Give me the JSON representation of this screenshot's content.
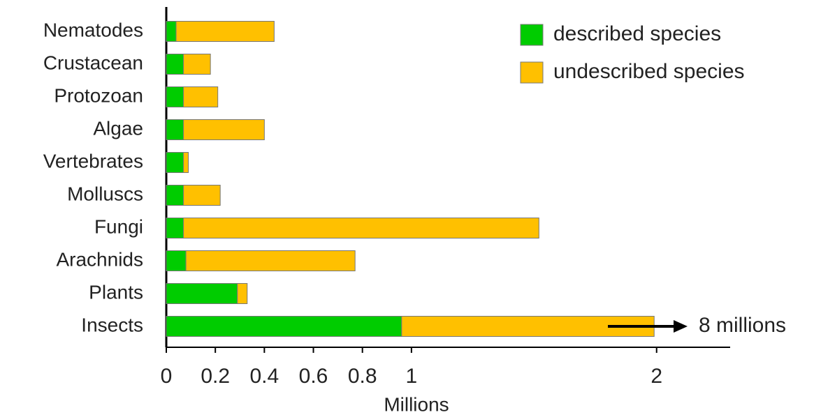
{
  "chart_data": {
    "type": "stacked-barh",
    "categories": [
      "Nematodes",
      "Crustacean",
      "Protozoan",
      "Algae",
      "Vertebrates",
      "Molluscs",
      "Fungi",
      "Arachnids",
      "Plants",
      "Insects"
    ],
    "series": [
      {
        "name": "described species",
        "color": "#00cc00",
        "values": [
          0.04,
          0.07,
          0.07,
          0.07,
          0.07,
          0.07,
          0.07,
          0.08,
          0.29,
          0.96
        ]
      },
      {
        "name": "undescribed species",
        "color": "#ffc000",
        "values": [
          0.4,
          0.11,
          0.14,
          0.33,
          0.02,
          0.15,
          1.45,
          0.69,
          0.04,
          1.03
        ]
      }
    ],
    "xlabel": "Millions",
    "xlim": [
      0,
      2.3
    ],
    "xticks": [
      0,
      0.2,
      0.4,
      0.6,
      0.8,
      1,
      2
    ],
    "annotation": "8 millions",
    "legend": "upper right"
  }
}
